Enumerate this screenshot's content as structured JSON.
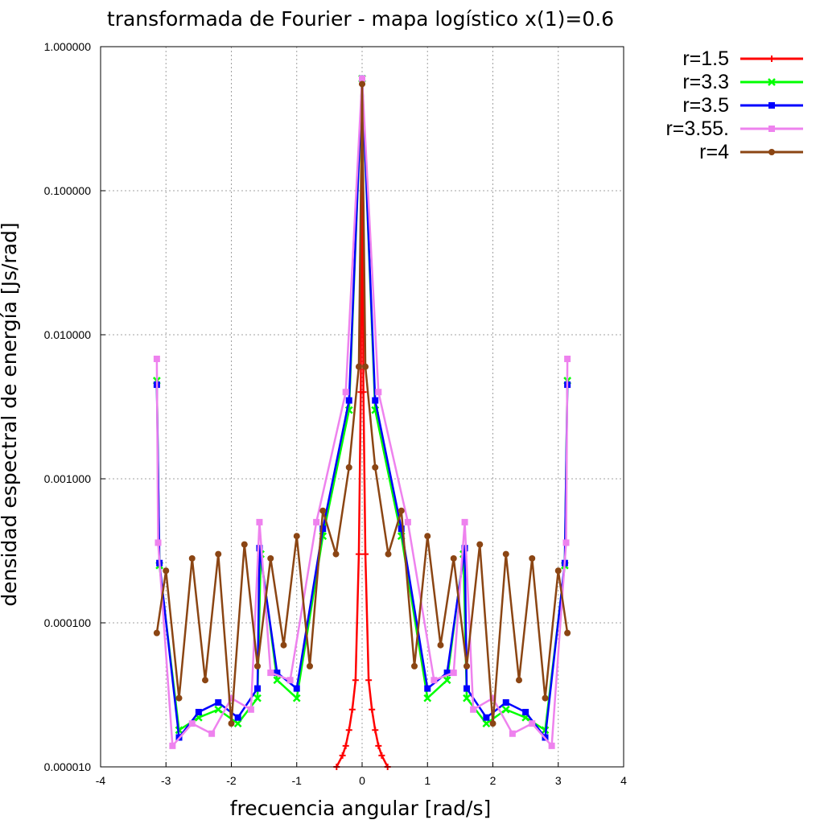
{
  "chart_data": {
    "type": "line",
    "title": "transformada de Fourier - mapa logístico x(1)=0.6",
    "xlabel": "frecuencia angular [rad/s]",
    "ylabel": "densidad espectral de energía [Js/rad]",
    "xlim": [
      -4,
      4
    ],
    "ylim": [
      1e-05,
      1.0
    ],
    "yscale": "log",
    "grid": true,
    "legend_position": "outside-top-right",
    "x_ticks": [
      "-4",
      "-3",
      "-2",
      "-1",
      "0",
      "1",
      "2",
      "3",
      "4"
    ],
    "y_ticks": [
      "1.000000",
      "0.100000",
      "0.010000",
      "0.001000",
      "0.000100",
      "0.000010"
    ],
    "series": [
      {
        "name": "r=1.5",
        "color": "#ff0000",
        "marker": "plus",
        "x": [
          -0.39,
          -0.3,
          -0.25,
          -0.2,
          -0.15,
          -0.1,
          -0.05,
          -0.02,
          0,
          0.02,
          0.05,
          0.1,
          0.15,
          0.2,
          0.25,
          0.3,
          0.39
        ],
        "y": [
          1e-05,
          1.2e-05,
          1.4e-05,
          1.8e-05,
          2.5e-05,
          4e-05,
          0.0003,
          0.004,
          0.55,
          0.004,
          0.0003,
          4e-05,
          2.5e-05,
          1.8e-05,
          1.4e-05,
          1.2e-05,
          1e-05
        ]
      },
      {
        "name": "r=3.3",
        "color": "#00ff00",
        "marker": "x",
        "x": [
          -3.14,
          -3.1,
          -2.8,
          -2.5,
          -2.2,
          -1.9,
          -1.6,
          -1.55,
          -1.3,
          -1.0,
          -0.6,
          -0.2,
          0,
          0.2,
          0.6,
          1.0,
          1.3,
          1.55,
          1.6,
          1.9,
          2.2,
          2.5,
          2.8,
          3.1,
          3.14
        ],
        "y": [
          0.0048,
          0.00025,
          1.8e-05,
          2.2e-05,
          2.5e-05,
          2e-05,
          3e-05,
          0.0003,
          4e-05,
          3e-05,
          0.0004,
          0.003,
          0.6,
          0.003,
          0.0004,
          3e-05,
          4e-05,
          0.0003,
          3e-05,
          2e-05,
          2.5e-05,
          2.2e-05,
          1.8e-05,
          0.00025,
          0.0048
        ]
      },
      {
        "name": "r=3.5",
        "color": "#0000ff",
        "marker": "square",
        "x": [
          -3.14,
          -3.1,
          -2.8,
          -2.5,
          -2.2,
          -1.9,
          -1.6,
          -1.57,
          -1.3,
          -1.0,
          -0.6,
          -0.2,
          0,
          0.2,
          0.6,
          1.0,
          1.3,
          1.57,
          1.6,
          1.9,
          2.2,
          2.5,
          2.8,
          3.1,
          3.14
        ],
        "y": [
          0.0045,
          0.00026,
          1.6e-05,
          2.4e-05,
          2.8e-05,
          2.2e-05,
          3.5e-05,
          0.00033,
          4.5e-05,
          3.5e-05,
          0.00045,
          0.0035,
          0.6,
          0.0035,
          0.00045,
          3.5e-05,
          4.5e-05,
          0.00033,
          3.5e-05,
          2.2e-05,
          2.8e-05,
          2.4e-05,
          1.6e-05,
          0.00026,
          0.0045
        ]
      },
      {
        "name": "r=3.55.",
        "color": "#ee82ee",
        "marker": "square",
        "x": [
          -3.14,
          -3.12,
          -2.9,
          -2.6,
          -2.3,
          -2.0,
          -1.7,
          -1.57,
          -1.4,
          -1.1,
          -0.7,
          -0.25,
          0,
          0.25,
          0.7,
          1.1,
          1.4,
          1.57,
          1.7,
          2.0,
          2.3,
          2.6,
          2.9,
          3.12,
          3.14
        ],
        "y": [
          0.0068,
          0.00036,
          1.4e-05,
          2e-05,
          1.7e-05,
          3e-05,
          2.5e-05,
          0.0005,
          4.5e-05,
          4e-05,
          0.0005,
          0.004,
          0.6,
          0.004,
          0.0005,
          4e-05,
          4.5e-05,
          0.0005,
          2.5e-05,
          3e-05,
          1.7e-05,
          2e-05,
          1.4e-05,
          0.00036,
          0.0068
        ]
      },
      {
        "name": "r=4",
        "color": "#8b4513",
        "marker": "circle",
        "x": [
          -3.14,
          -3.0,
          -2.8,
          -2.6,
          -2.4,
          -2.2,
          -2.0,
          -1.8,
          -1.6,
          -1.4,
          -1.2,
          -1.0,
          -0.8,
          -0.6,
          -0.4,
          -0.2,
          -0.05,
          0,
          0.05,
          0.2,
          0.4,
          0.6,
          0.8,
          1.0,
          1.2,
          1.4,
          1.6,
          1.8,
          2.0,
          2.2,
          2.4,
          2.6,
          2.8,
          3.0,
          3.14
        ],
        "y": [
          8.5e-05,
          0.00023,
          3e-05,
          0.00028,
          4e-05,
          0.0003,
          2e-05,
          0.00035,
          5e-05,
          0.00028,
          7e-05,
          0.0004,
          5e-05,
          0.0006,
          0.0003,
          0.0012,
          0.006,
          0.55,
          0.006,
          0.0012,
          0.0003,
          0.0006,
          5e-05,
          0.0004,
          7e-05,
          0.00028,
          5e-05,
          0.00035,
          2e-05,
          0.0003,
          4e-05,
          0.00028,
          3e-05,
          0.00023,
          8.5e-05
        ]
      }
    ]
  }
}
